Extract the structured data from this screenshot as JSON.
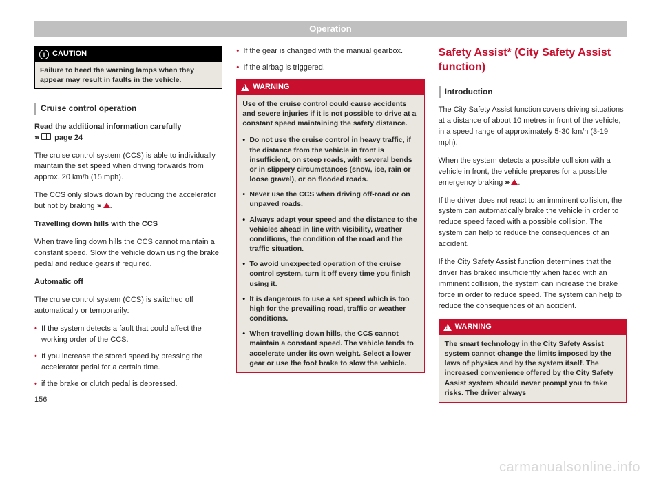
{
  "header": "Operation",
  "page_number": "156",
  "watermark": "carmanualsonline.info",
  "colors": {
    "accent_red": "#c8102e",
    "header_gray": "#c0c0c0",
    "box_bg": "#e9e7e0",
    "text": "#2a2a2a"
  },
  "col1": {
    "caution": {
      "label": "CAUTION",
      "body": "Failure to heed the warning lamps when they appear may result in faults in the vehicle."
    },
    "section1_title": "Cruise control operation",
    "read_additional": "Read the additional information carefully",
    "page_ref": "page 24",
    "p1": "The cruise control system (CCS) is able to individually maintain the set speed when driving forwards from approx. 20 km/h (15 mph).",
    "p2_a": "The CCS only slows down by reducing the accelerator but not by braking ",
    "p2_b": ".",
    "sub1": "Travelling down hills with the CCS",
    "p3": "When travelling down hills the CCS cannot maintain a constant speed. Slow the vehicle down using the brake pedal and reduce gears if required.",
    "sub2": "Automatic off",
    "p4": "The cruise control system (CCS) is switched off automatically or temporarily:",
    "b1": "If the system detects a fault that could affect the working order of the CCS.",
    "b2": "If you increase the stored speed by pressing the accelerator pedal for a certain time.",
    "b3": "if the brake or clutch pedal is depressed."
  },
  "col2": {
    "b1": "If the gear is changed with the manual gearbox.",
    "b2": "If the airbag is triggered.",
    "warning": {
      "label": "WARNING",
      "intro": "Use of the cruise control could cause accidents and severe injuries if it is not possible to drive at a constant speed maintaining the safety distance.",
      "w1": "Do not use the cruise control in heavy traffic, if the distance from the vehicle in front is insufficient, on steep roads, with several bends or in slippery circumstances (snow, ice, rain or loose gravel), or on flooded roads.",
      "w2": "Never use the CCS when driving off-road or on unpaved roads.",
      "w3": "Always adapt your speed and the distance to the vehicles ahead in line with visibility, weather conditions, the condition of the road and the traffic situation.",
      "w4": "To avoid unexpected operation of the cruise control system, turn it off every time you finish using it.",
      "w5": "It is dangerous to use a set speed which is too high for the prevailing road, traffic or weather conditions.",
      "w6": "When travelling down hills, the CCS cannot maintain a constant speed. The vehicle tends to accelerate under its own weight. Select a lower gear or use the foot brake to slow the vehicle."
    }
  },
  "col3": {
    "title": "Safety Assist* (City Safety Assist function)",
    "section_title": "Introduction",
    "p1": "The City Safety Assist function covers driving situations at a distance of about 10 metres in front of the vehicle, in a speed range of approximately 5-30 km/h (3-19 mph).",
    "p2_a": "When the system detects a possible collision with a vehicle in front, the vehicle prepares for a possible emergency braking ",
    "p2_b": ".",
    "p3": "If the driver does not react to an imminent collision, the system can automatically brake the vehicle in order to reduce speed faced with a possible collision. The system can help to reduce the consequences of an accident.",
    "p4": "If the City Safety Assist function determines that the driver has braked insufficiently when faced with an imminent collision, the system can increase the brake force in order to reduce speed. The system can help to reduce the consequences of an accident.",
    "warning": {
      "label": "WARNING",
      "body": "The smart technology in the City Safety Assist system cannot change the limits imposed by the laws of physics and by the system itself. The increased convenience offered by the City Safety Assist system should never prompt you to take risks. The driver always"
    }
  }
}
